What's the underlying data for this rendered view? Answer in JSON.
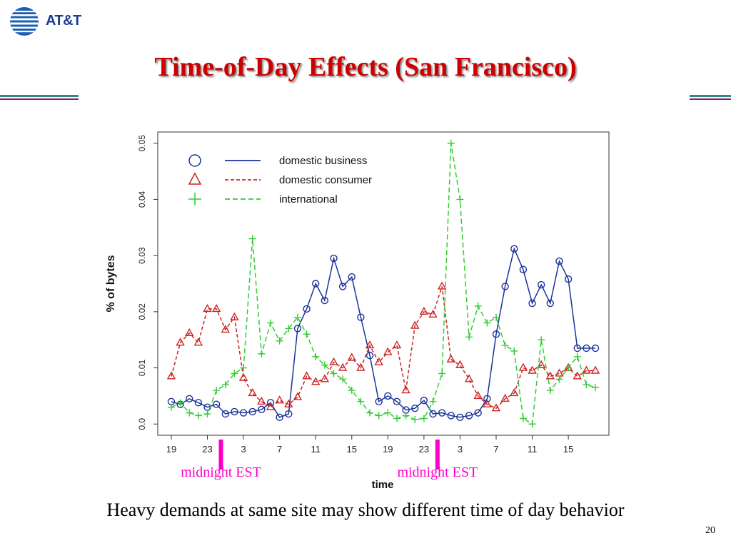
{
  "slide": {
    "logo_text": "AT&T",
    "title": "Time-of-Day Effects (San Francisco)",
    "caption": "Heavy demands at same site may show different time of day behavior",
    "page_number": "20"
  },
  "colors": {
    "title": "#cc0000",
    "domestic_business": "#1a3399",
    "domestic_consumer": "#cc2222",
    "international": "#33cc33",
    "midnight_marker": "#ff00cc"
  },
  "chart_data": {
    "type": "line",
    "xlabel": "time",
    "ylabel": "% of bytes",
    "ylim": [
      0,
      0.05
    ],
    "yticks": [
      "0.0",
      "0.01",
      "0.02",
      "0.03",
      "0.04",
      "0.05"
    ],
    "xticks": [
      "19",
      "23",
      "3",
      "7",
      "11",
      "15",
      "19",
      "23",
      "3",
      "7",
      "11",
      "15"
    ],
    "x_tick_positions": [
      0,
      4,
      8,
      12,
      16,
      20,
      24,
      28,
      32,
      36,
      40,
      44
    ],
    "xlim": [
      -1.5,
      48.5
    ],
    "grid": false,
    "legend_position": "top-left",
    "annotations": [
      {
        "label": "midnight EST",
        "x": 5.5
      },
      {
        "label": "midnight EST",
        "x": 29.5
      }
    ],
    "series": [
      {
        "name": "domestic business",
        "style": "solid",
        "marker": "circle",
        "x": [
          0,
          1,
          2,
          3,
          4,
          5,
          6,
          7,
          8,
          9,
          10,
          11,
          12,
          13,
          14,
          15,
          16,
          17,
          18,
          19,
          20,
          21,
          22,
          23,
          24,
          25,
          26,
          27,
          28,
          29,
          30,
          31,
          32,
          33,
          34,
          35,
          36,
          37,
          38,
          39,
          40,
          41,
          42,
          43,
          44,
          45,
          46,
          47
        ],
        "values": [
          0.004,
          0.0035,
          0.0045,
          0.0038,
          0.003,
          0.0035,
          0.0018,
          0.0022,
          0.002,
          0.0022,
          0.0026,
          0.0038,
          0.0012,
          0.0018,
          0.017,
          0.0205,
          0.025,
          0.022,
          0.0295,
          0.0245,
          0.0262,
          0.019,
          0.0122,
          0.004,
          0.005,
          0.004,
          0.0025,
          0.0028,
          0.0042,
          0.0018,
          0.002,
          0.0015,
          0.0012,
          0.0015,
          0.002,
          0.0045,
          0.016,
          0.0245,
          0.0312,
          0.0275,
          0.0215,
          0.0248,
          0.0215,
          0.029,
          0.0258,
          0.0135,
          0.0135,
          0.0135
        ]
      },
      {
        "name": "domestic consumer",
        "style": "dashed",
        "marker": "triangle",
        "x": [
          0,
          1,
          2,
          3,
          4,
          5,
          6,
          7,
          8,
          9,
          10,
          11,
          12,
          13,
          14,
          15,
          16,
          17,
          18,
          19,
          20,
          21,
          22,
          23,
          24,
          25,
          26,
          27,
          28,
          29,
          30,
          31,
          32,
          33,
          34,
          35,
          36,
          37,
          38,
          39,
          40,
          41,
          42,
          43,
          44,
          45,
          46,
          47
        ],
        "values": [
          0.0085,
          0.0145,
          0.0162,
          0.0145,
          0.0205,
          0.0205,
          0.0168,
          0.019,
          0.0082,
          0.0055,
          0.004,
          0.003,
          0.0042,
          0.0035,
          0.0048,
          0.0085,
          0.0075,
          0.008,
          0.011,
          0.01,
          0.0118,
          0.01,
          0.014,
          0.011,
          0.0128,
          0.014,
          0.006,
          0.0175,
          0.02,
          0.0195,
          0.0245,
          0.0115,
          0.0105,
          0.008,
          0.005,
          0.0035,
          0.0028,
          0.0045,
          0.0055,
          0.01,
          0.0095,
          0.0105,
          0.0085,
          0.009,
          0.01,
          0.0085,
          0.0095,
          0.0095
        ]
      },
      {
        "name": "international",
        "style": "dashed",
        "marker": "plus",
        "x": [
          0,
          1,
          2,
          3,
          4,
          5,
          6,
          7,
          8,
          9,
          10,
          11,
          12,
          13,
          14,
          15,
          16,
          17,
          18,
          19,
          20,
          21,
          22,
          23,
          24,
          25,
          26,
          27,
          28,
          29,
          30,
          31,
          32,
          33,
          34,
          35,
          36,
          37,
          38,
          39,
          40,
          41,
          42,
          43,
          44,
          45,
          46,
          47
        ],
        "values": [
          0.003,
          0.0038,
          0.002,
          0.0015,
          0.0018,
          0.006,
          0.007,
          0.009,
          0.01,
          0.033,
          0.0125,
          0.018,
          0.0148,
          0.017,
          0.019,
          0.016,
          0.012,
          0.0105,
          0.009,
          0.008,
          0.006,
          0.004,
          0.002,
          0.0015,
          0.002,
          0.001,
          0.0015,
          0.0008,
          0.001,
          0.004,
          0.009,
          0.05,
          0.04,
          0.0155,
          0.021,
          0.018,
          0.019,
          0.014,
          0.013,
          0.001,
          0.0,
          0.015,
          0.006,
          0.008,
          0.01,
          0.012,
          0.007,
          0.0065
        ]
      }
    ]
  }
}
